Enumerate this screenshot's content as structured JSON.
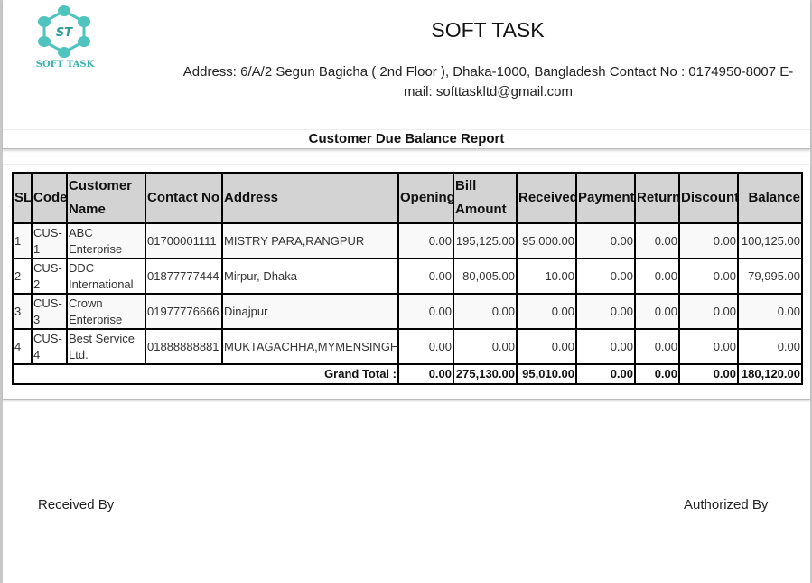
{
  "company": {
    "name": "SOFT TASK",
    "logo_text": "SOFT TASK",
    "logo_initials": "ST",
    "address_line": "Address: 6/A/2 Segun Bagicha ( 2nd Floor ), Dhaka-1000, Bangladesh Contact No : 0174950-8007 E-mail: softtaskltd@gmail.com",
    "brand_color": "#4fc3be"
  },
  "report": {
    "title": "Customer Due Balance Report",
    "columns": [
      "SL",
      "Code",
      "Customer Name",
      "Contact No",
      "Address",
      "Opening",
      "Bill Amount",
      "Received",
      "Payment",
      "Return",
      "Discount",
      "Balance"
    ],
    "rows": [
      {
        "sl": "1",
        "code": "CUS-1",
        "name": "ABC Enterprise",
        "contact": "01700001111",
        "address": "MISTRY PARA,RANGPUR",
        "opening": "0.00",
        "bill": "195,125.00",
        "received": "95,000.00",
        "payment": "0.00",
        "return": "0.00",
        "discount": "0.00",
        "balance": "100,125.00"
      },
      {
        "sl": "2",
        "code": "CUS-2",
        "name": "DDC International",
        "contact": "01877777444",
        "address": "Mirpur, Dhaka",
        "opening": "0.00",
        "bill": "80,005.00",
        "received": "10.00",
        "payment": "0.00",
        "return": "0.00",
        "discount": "0.00",
        "balance": "79,995.00"
      },
      {
        "sl": "3",
        "code": "CUS-3",
        "name": "Crown Enterprise",
        "contact": "01977776666",
        "address": "Dinajpur",
        "opening": "0.00",
        "bill": "0.00",
        "received": "0.00",
        "payment": "0.00",
        "return": "0.00",
        "discount": "0.00",
        "balance": "0.00"
      },
      {
        "sl": "4",
        "code": "CUS-4",
        "name": "Best Service Ltd.",
        "contact": "01888888881",
        "address": "MUKTAGACHHA,MYMENSINGH",
        "opening": "0.00",
        "bill": "0.00",
        "received": "0.00",
        "payment": "0.00",
        "return": "0.00",
        "discount": "0.00",
        "balance": "0.00"
      }
    ],
    "total": {
      "label": "Grand Total :",
      "opening": "0.00",
      "bill": "275,130.00",
      "received": "95,010.00",
      "payment": "0.00",
      "return": "0.00",
      "discount": "0.00",
      "balance": "180,120.00"
    }
  },
  "signatures": {
    "left": "Received By",
    "right": "Authorized By"
  }
}
